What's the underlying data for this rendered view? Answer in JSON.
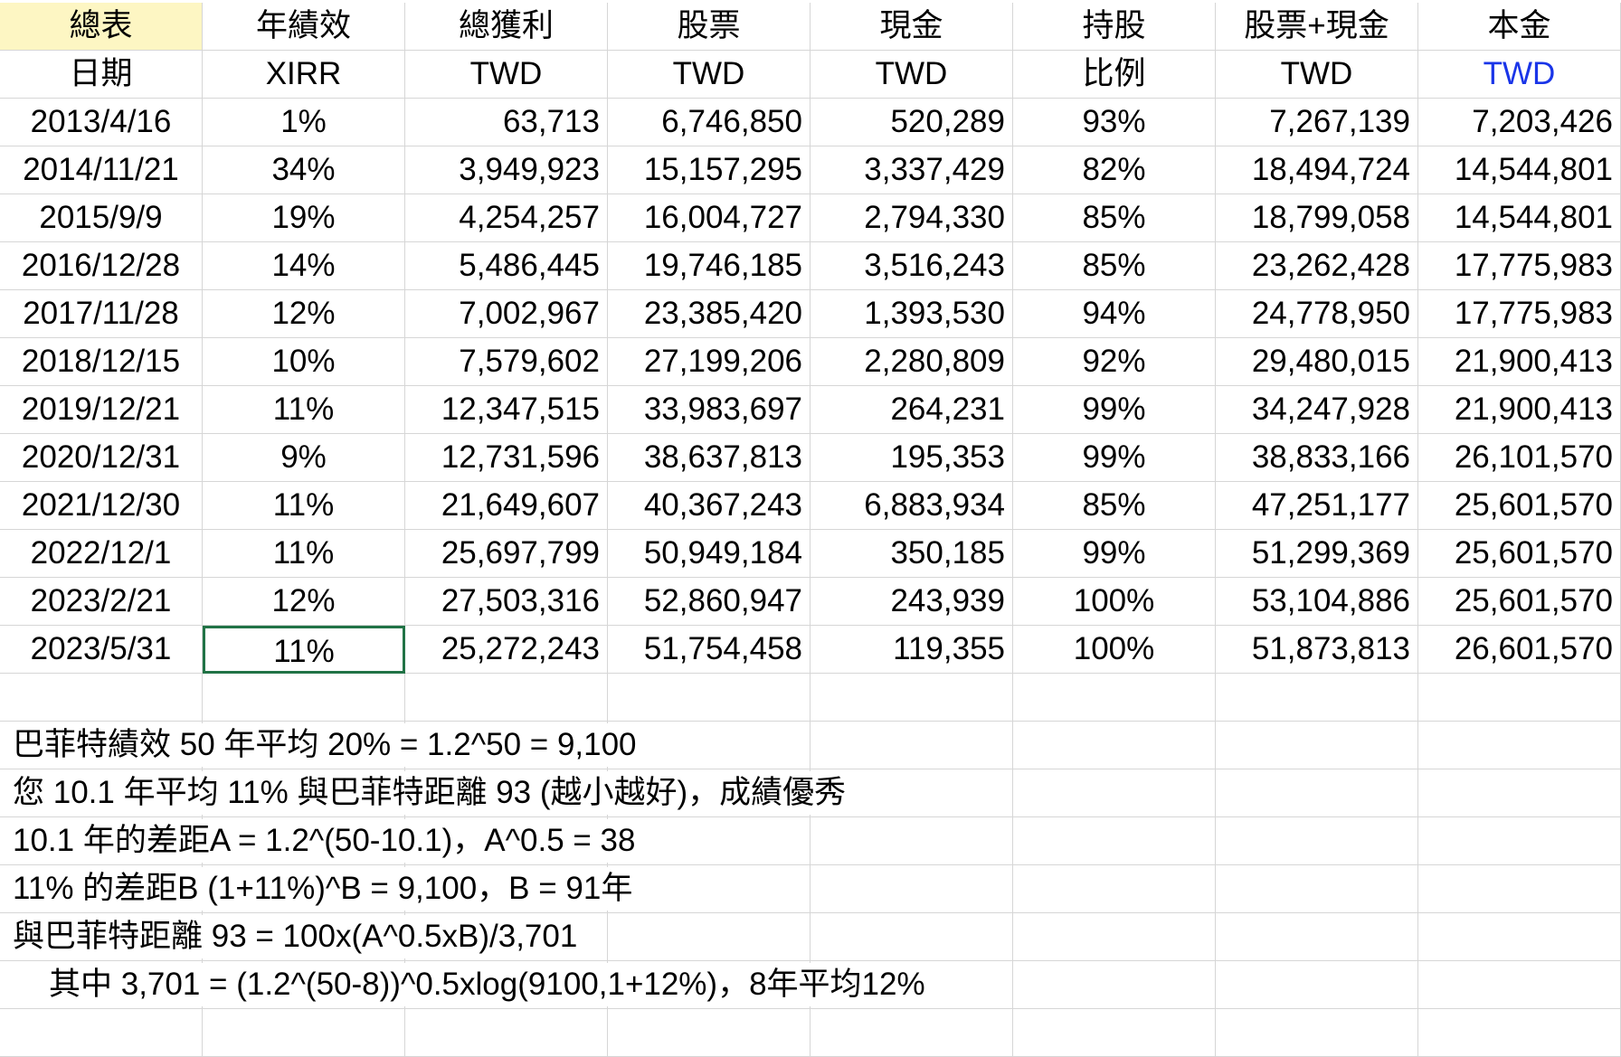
{
  "header": {
    "row1": [
      "總表",
      "年績效",
      "總獲利",
      "股票",
      "現金",
      "持股",
      "股票+現金",
      "本金"
    ],
    "row2": [
      "日期",
      "XIRR",
      "TWD",
      "TWD",
      "TWD",
      "比例",
      "TWD",
      "TWD"
    ]
  },
  "rows": [
    [
      "2013/4/16",
      "1%",
      "63,713",
      "6,746,850",
      "520,289",
      "93%",
      "7,267,139",
      "7,203,426"
    ],
    [
      "2014/11/21",
      "34%",
      "3,949,923",
      "15,157,295",
      "3,337,429",
      "82%",
      "18,494,724",
      "14,544,801"
    ],
    [
      "2015/9/9",
      "19%",
      "4,254,257",
      "16,004,727",
      "2,794,330",
      "85%",
      "18,799,058",
      "14,544,801"
    ],
    [
      "2016/12/28",
      "14%",
      "5,486,445",
      "19,746,185",
      "3,516,243",
      "85%",
      "23,262,428",
      "17,775,983"
    ],
    [
      "2017/11/28",
      "12%",
      "7,002,967",
      "23,385,420",
      "1,393,530",
      "94%",
      "24,778,950",
      "17,775,983"
    ],
    [
      "2018/12/15",
      "10%",
      "7,579,602",
      "27,199,206",
      "2,280,809",
      "92%",
      "29,480,015",
      "21,900,413"
    ],
    [
      "2019/12/21",
      "11%",
      "12,347,515",
      "33,983,697",
      "264,231",
      "99%",
      "34,247,928",
      "21,900,413"
    ],
    [
      "2020/12/31",
      "9%",
      "12,731,596",
      "38,637,813",
      "195,353",
      "99%",
      "38,833,166",
      "26,101,570"
    ],
    [
      "2021/12/30",
      "11%",
      "21,649,607",
      "40,367,243",
      "6,883,934",
      "85%",
      "47,251,177",
      "25,601,570"
    ],
    [
      "2022/12/1",
      "11%",
      "25,697,799",
      "50,949,184",
      "350,185",
      "99%",
      "51,299,369",
      "25,601,570"
    ],
    [
      "2023/2/21",
      "12%",
      "27,503,316",
      "52,860,947",
      "243,939",
      "100%",
      "53,104,886",
      "25,601,570"
    ],
    [
      "2023/5/31",
      "11%",
      "25,272,243",
      "51,754,458",
      "119,355",
      "100%",
      "51,873,813",
      "26,601,570"
    ]
  ],
  "notes": [
    "巴菲特績效 50 年平均 20% = 1.2^50 = 9,100",
    "您 10.1 年平均 11% 與巴菲特距離 93 (越小越好)，成績優秀",
    "10.1 年的差距A = 1.2^(50-10.1)，A^0.5 = 38",
    "11% 的差距B (1+11%)^B = 9,100，B = 91年",
    "與巴菲特距離 93 = 100x(A^0.5xB)/3,701",
    "其中 3,701 = (1.2^(50-8))^0.5xlog(9100,1+12%)，8年平均12%"
  ]
}
